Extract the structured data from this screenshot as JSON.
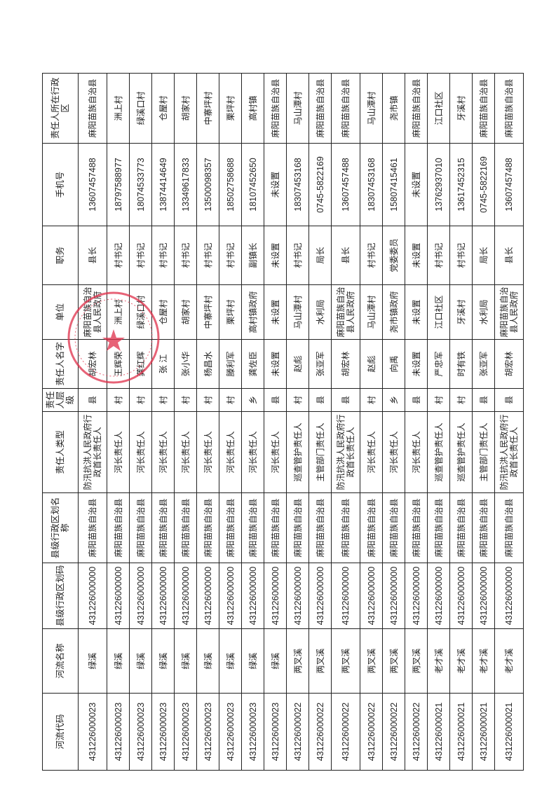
{
  "headers": [
    "河流代码",
    "河流名称",
    "县级行政区划码",
    "县级行政区划名称",
    "责任人类型",
    "责任人层级",
    "责任人名字",
    "单位",
    "职务",
    "手机号",
    "责任人所在行政区"
  ],
  "rows": [
    [
      "431226000023",
      "绿溪",
      "431226000000",
      "麻阳苗族自治县",
      "防汛抗洪人民政府行政首长责任人",
      "县",
      "胡宏林",
      "麻阳苗族自治县人民政府",
      "县长",
      "13607457488",
      "麻阳苗族自治县"
    ],
    [
      "431226000023",
      "绿溪",
      "431226000000",
      "麻阳苗族自治县",
      "河长责任人",
      "村",
      "王辉荣",
      "洲上村",
      "村书记",
      "18797588977",
      "洲上村"
    ],
    [
      "431226000023",
      "绿溪",
      "431226000000",
      "麻阳苗族自治县",
      "河长责任人",
      "村",
      "龚红辉",
      "绿溪口村",
      "村书记",
      "18074533773",
      "绿溪口村"
    ],
    [
      "431226000023",
      "绿溪",
      "431226000000",
      "麻阳苗族自治县",
      "河长责任人",
      "村",
      "张 江",
      "仓屋村",
      "村书记",
      "13874414649",
      "仓屋村"
    ],
    [
      "431226000023",
      "绿溪",
      "431226000000",
      "麻阳苗族自治县",
      "河长责任人",
      "村",
      "张小华",
      "胡家村",
      "村书记",
      "13349617833",
      "胡家村"
    ],
    [
      "431226000023",
      "绿溪",
      "431226000000",
      "麻阳苗族自治县",
      "河长责任人",
      "村",
      "杨昌水",
      "中寨坪村",
      "村书记",
      "13500098357",
      "中寨坪村"
    ],
    [
      "431226000023",
      "绿溪",
      "431226000000",
      "麻阳苗族自治县",
      "河长责任人",
      "村",
      "滕利军",
      "栗坪村",
      "村书记",
      "18502758688",
      "栗坪村"
    ],
    [
      "431226000023",
      "绿溪",
      "431226000000",
      "麻阳苗族自治县",
      "河长责任人",
      "乡",
      "龚佐臣",
      "高村镇政府",
      "副镇长",
      "18107452650",
      "高村镇"
    ],
    [
      "431226000023",
      "绿溪",
      "431226000000",
      "麻阳苗族自治县",
      "河长责任人",
      "县",
      "未设置",
      "未设置",
      "未设置",
      "未设置",
      "麻阳苗族自治县"
    ],
    [
      "431226000022",
      "两叉溪",
      "431226000000",
      "麻阳苗族自治县",
      "巡查管护责任人",
      "村",
      "赵彪",
      "马山潭村",
      "村书记",
      "18307453168",
      "马山潭村"
    ],
    [
      "431226000022",
      "两叉溪",
      "431226000000",
      "麻阳苗族自治县",
      "主管部门责任人",
      "县",
      "张亚军",
      "水利局",
      "局长",
      "0745-5822169",
      "麻阳苗族自治县"
    ],
    [
      "431226000022",
      "两叉溪",
      "431226000000",
      "麻阳苗族自治县",
      "防汛抗洪人民政府行政首长责任人",
      "县",
      "胡宏林",
      "麻阳苗族自治县人民政府",
      "县长",
      "13607457488",
      "麻阳苗族自治县"
    ],
    [
      "431226000022",
      "两叉溪",
      "431226000000",
      "麻阳苗族自治县",
      "河长责任人",
      "村",
      "赵彪",
      "马山潭村",
      "村书记",
      "18307453168",
      "马山潭村"
    ],
    [
      "431226000022",
      "两叉溪",
      "431226000000",
      "麻阳苗族自治县",
      "河长责任人",
      "乡",
      "向禹",
      "尧市镇政府",
      "党委委员",
      "15807415461",
      "尧市镇"
    ],
    [
      "431226000022",
      "两叉溪",
      "431226000000",
      "麻阳苗族自治县",
      "河长责任人",
      "县",
      "未设置",
      "未设置",
      "未设置",
      "未设置",
      "麻阳苗族自治县"
    ],
    [
      "431226000021",
      "老才溪",
      "431226000000",
      "麻阳苗族自治县",
      "巡查管护责任人",
      "村",
      "严忠军",
      "江口社区",
      "村书记",
      "13762937010",
      "江口社区"
    ],
    [
      "431226000021",
      "老才溪",
      "431226000000",
      "麻阳苗族自治县",
      "巡查管护责任人",
      "村",
      "时有铁",
      "牙溪村",
      "村书记",
      "13617452315",
      "牙溪村"
    ],
    [
      "431226000021",
      "老才溪",
      "431226000000",
      "麻阳苗族自治县",
      "主管部门责任人",
      "县",
      "张亚军",
      "水利局",
      "局长",
      "0745-5822169",
      "麻阳苗族自治县"
    ],
    [
      "431226000021",
      "老才溪",
      "431226000000",
      "麻阳苗族自治县",
      "防汛抗洪人民政府行政首长责任人",
      "县",
      "胡宏林",
      "麻阳苗族自治县人民政府",
      "县长",
      "13607457488",
      "麻阳苗族自治县"
    ]
  ],
  "seal": {
    "text": "麻阳苗族自治县水利局",
    "color": "#e0304a"
  }
}
